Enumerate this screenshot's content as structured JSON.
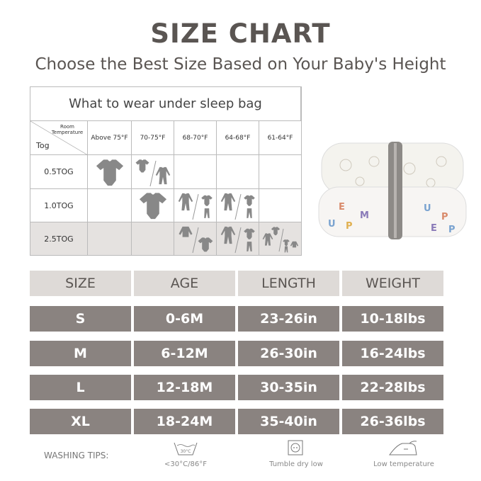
{
  "title": "SIZE CHART",
  "subtitle": "Choose the Best Size Based on Your Baby's Height",
  "wear_table": {
    "heading": "What to wear under sleep bag",
    "corner_top": "Room Temperature",
    "corner_bottom": "Tog",
    "temperatures": [
      "Above 75°F",
      "70-75°F",
      "68-70°F",
      "64-68°F",
      "61-64°F"
    ],
    "rows": [
      {
        "tog": "0.5TOG",
        "cells": [
          "bodysuit",
          "bodysuit / sleepsuit",
          "",
          "",
          ""
        ]
      },
      {
        "tog": "1.0TOG",
        "cells": [
          "",
          "bodysuit",
          "sleepsuit / bodysuit+pants",
          "sleepsuit / bodysuit+pants",
          ""
        ]
      },
      {
        "tog": "2.5TOG",
        "cells": [
          "",
          "",
          "jacket / bodysuit",
          "sleepsuit / bodysuit+pants",
          "sleepsuit+bodysuit / bodysuit+pants+jacket"
        ]
      }
    ],
    "highlight_color": "#e5e2e0"
  },
  "size_table": {
    "headers": [
      "SIZE",
      "AGE",
      "LENGTH",
      "WEIGHT"
    ],
    "rows": [
      [
        "S",
        "0-6M",
        "23-26in",
        "10-18lbs"
      ],
      [
        "M",
        "6-12M",
        "26-30in",
        "16-24lbs"
      ],
      [
        "L",
        "12-18M",
        "30-35in",
        "22-28lbs"
      ],
      [
        "XL",
        "18-24M",
        "35-40in",
        "26-36lbs"
      ]
    ],
    "header_color": "#dedad7",
    "row_color": "#8a8380"
  },
  "washing": {
    "label": "WASHING TIPS:",
    "tips": [
      {
        "icon": "wash-30-icon",
        "symbol_text": "30°C",
        "text": "<30°C/86°F"
      },
      {
        "icon": "tumble-dry-low-icon",
        "text": "Tumble dry low"
      },
      {
        "icon": "iron-low-icon",
        "text": "Low temperature"
      }
    ]
  }
}
